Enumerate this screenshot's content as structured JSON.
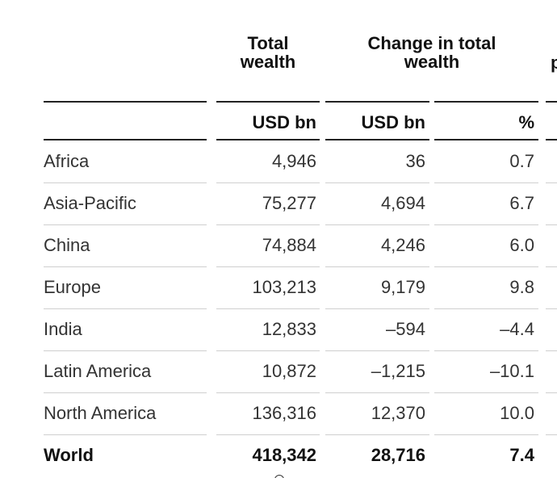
{
  "table": {
    "headers": {
      "total_wealth": "Total\nwealth",
      "change_in_total_wealth": "Change in total\nwealth",
      "cut_off": "p"
    },
    "units": {
      "total_wealth": "USD bn",
      "change_usd": "USD bn",
      "change_pct": "%"
    },
    "rows": [
      {
        "region": "Africa",
        "total": "4,946",
        "change": "36",
        "pct": "0.7"
      },
      {
        "region": "Asia-Pacific",
        "total": "75,277",
        "change": "4,694",
        "pct": "6.7"
      },
      {
        "region": "China",
        "total": "74,884",
        "change": "4,246",
        "pct": "6.0"
      },
      {
        "region": "Europe",
        "total": "103,213",
        "change": "9,179",
        "pct": "9.8"
      },
      {
        "region": "India",
        "total": "12,833",
        "change": "–594",
        "pct": "–4.4"
      },
      {
        "region": "Latin America",
        "total": "10,872",
        "change": "–1,215",
        "pct": "–10.1"
      },
      {
        "region": "North America",
        "total": "136,316",
        "change": "12,370",
        "pct": "10.0"
      }
    ],
    "total_row": {
      "region": "World",
      "total": "418,342",
      "change": "28,716",
      "pct": "7.4"
    }
  }
}
